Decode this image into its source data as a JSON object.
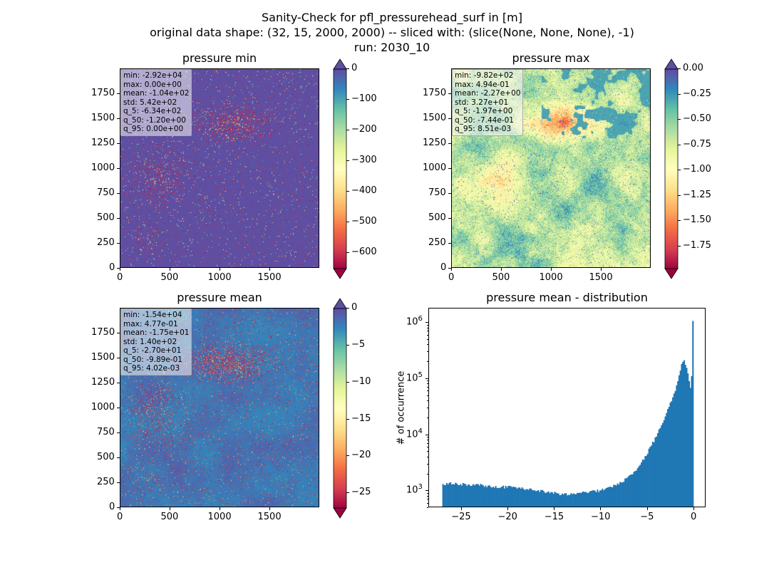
{
  "figure": {
    "title_lines": [
      "Sanity-Check for pfl_pressurehead_surf in [m]",
      "original data shape: (32, 15, 2000, 2000) -- sliced with: (slice(None, None, None), -1)",
      "run: 2030_10"
    ]
  },
  "colormap": "Spectral",
  "colors": {
    "histogram_bar": "#1f77b4",
    "spectral_low": "#9e0142",
    "spectral_high": "#5e4fa2"
  },
  "chart_data": [
    {
      "type": "heatmap",
      "title": "pressure min",
      "x_ticks": [
        "0",
        "500",
        "1000",
        "1500"
      ],
      "y_ticks": [
        "0",
        "250",
        "500",
        "750",
        "1000",
        "1250",
        "1500",
        "1750"
      ],
      "xlim": [
        0,
        2000
      ],
      "ylim": [
        0,
        2000
      ],
      "colorbar": {
        "vmin": -650,
        "vmax": 0,
        "ticks": [
          "0",
          "−100",
          "−200",
          "−300",
          "−400",
          "−500",
          "−600"
        ],
        "extend": "both"
      },
      "stats": [
        "min: -2.92e+04",
        "max: 0.00e+00",
        "mean: -1.04e+02",
        "std: 5.42e+02",
        "q_5: -6.34e+02",
        "q_50: -1.20e+00",
        "q_95: 0.00e+00"
      ]
    },
    {
      "type": "heatmap",
      "title": "pressure max",
      "x_ticks": [
        "0",
        "500",
        "1000",
        "1500"
      ],
      "y_ticks": [
        "0",
        "250",
        "500",
        "750",
        "1000",
        "1250",
        "1500",
        "1750"
      ],
      "xlim": [
        0,
        2000
      ],
      "ylim": [
        0,
        2000
      ],
      "colorbar": {
        "vmin": -1.97,
        "vmax": 0,
        "ticks": [
          "0.00",
          "−0.25",
          "−0.50",
          "−0.75",
          "−1.00",
          "−1.25",
          "−1.50",
          "−1.75"
        ],
        "extend": "both"
      },
      "stats": [
        "min: -9.82e+02",
        "max: 4.94e-01",
        "mean: -2.27e+00",
        "std: 3.27e+01",
        "q_5: -1.97e+00",
        "q_50: -7.44e-01",
        "q_95: 8.51e-03"
      ]
    },
    {
      "type": "heatmap",
      "title": "pressure mean",
      "x_ticks": [
        "0",
        "500",
        "1000",
        "1500"
      ],
      "y_ticks": [
        "0",
        "250",
        "500",
        "750",
        "1000",
        "1250",
        "1500",
        "1750"
      ],
      "xlim": [
        0,
        2000
      ],
      "ylim": [
        0,
        2000
      ],
      "colorbar": {
        "vmin": -27,
        "vmax": 0,
        "ticks": [
          "0",
          "−5",
          "−10",
          "−15",
          "−20",
          "−25"
        ],
        "extend": "both"
      },
      "stats": [
        "min: -1.54e+04",
        "max: 4.77e-01",
        "mean: -1.75e+01",
        "std: 1.40e+02",
        "q_5: -2.70e+01",
        "q_50: -9.89e-01",
        "q_95: 4.02e-03"
      ]
    },
    {
      "type": "bar",
      "title": "pressure mean - distribution",
      "ylabel": "# of occurrence",
      "y_scale": "log",
      "xlim": [
        -28.5,
        1.3
      ],
      "x_ticks": [
        "−25",
        "−20",
        "−15",
        "−10",
        "−5",
        "0"
      ],
      "x_tick_values": [
        -25,
        -20,
        -15,
        -10,
        -5,
        0
      ],
      "y_ticks": [
        {
          "base": "10",
          "exp": "3",
          "value": 1000
        },
        {
          "base": "10",
          "exp": "4",
          "value": 10000
        },
        {
          "base": "10",
          "exp": "5",
          "value": 100000
        },
        {
          "base": "10",
          "exp": "6",
          "value": 1000000
        }
      ],
      "ylim": [
        500,
        1800000
      ],
      "bins": {
        "x": [
          -27,
          -26,
          -25,
          -24,
          -23,
          -22,
          -21,
          -20,
          -19,
          -18,
          -17,
          -16,
          -15,
          -14,
          -13,
          -12,
          -11,
          -10,
          -9,
          -8,
          -7,
          -6,
          -5,
          -4.5,
          -4,
          -3.5,
          -3,
          -2.5,
          -2,
          -1.75,
          -1.5,
          -1.25,
          -1.0,
          -0.75,
          -0.5,
          -0.25,
          0
        ],
        "counts": [
          1300,
          1350,
          1300,
          1250,
          1250,
          1200,
          1150,
          1150,
          1100,
          1050,
          1000,
          950,
          900,
          850,
          850,
          900,
          950,
          1000,
          1150,
          1350,
          1700,
          2500,
          4500,
          6500,
          9000,
          14000,
          22000,
          35000,
          55000,
          80000,
          120000,
          180000,
          200000,
          160000,
          90000,
          60000,
          1050000
        ]
      }
    }
  ]
}
